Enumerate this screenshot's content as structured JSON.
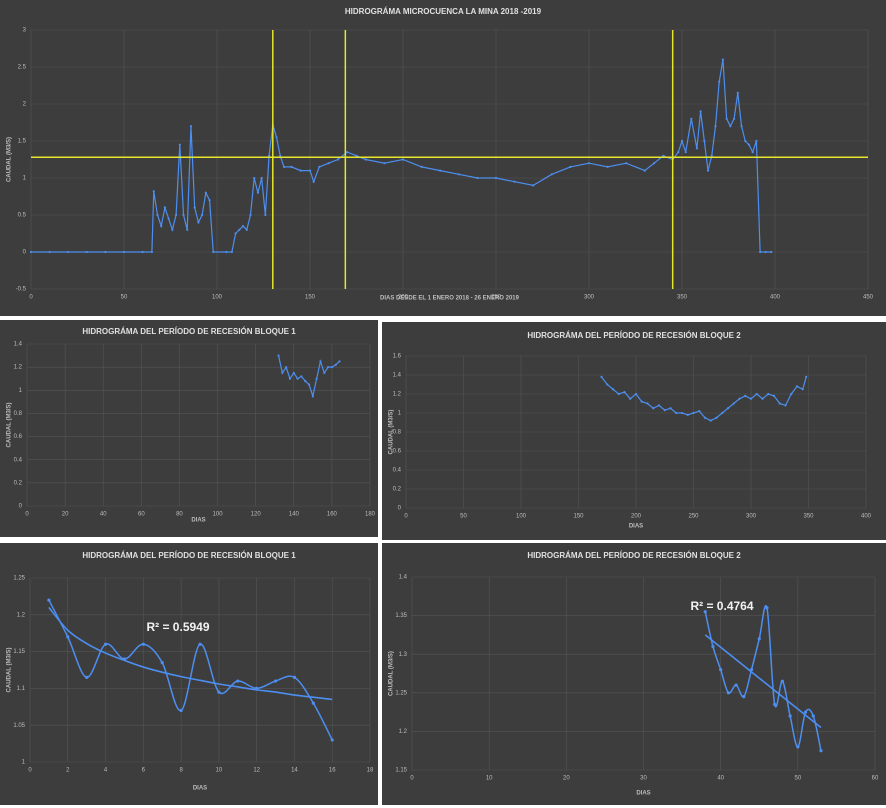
{
  "chart_data": [
    {
      "type": "line",
      "title": "HIDROGRÁMA MICROCUENCA LA MINA 2018 -2019",
      "x_label": "DIAS DESDE EL 1 ENERO 2018 - 26 ENERO 2019",
      "y_label": "CAUDAL (M3/S)",
      "xlim": [
        0,
        450
      ],
      "xticks": [
        0,
        50,
        100,
        150,
        200,
        250,
        300,
        350,
        400,
        450
      ],
      "ylim": [
        -0.5,
        3
      ],
      "yticks": [
        -0.5,
        0,
        0.5,
        1,
        1.5,
        2,
        2.5,
        3
      ],
      "grid": true,
      "color": "#4d8ef0",
      "smooth": false,
      "vlines": [
        130,
        169,
        345
      ],
      "hline": 1.28,
      "ref_color": "#e6e62a",
      "x": [
        0,
        10,
        20,
        30,
        40,
        50,
        60,
        65,
        66,
        68,
        70,
        72,
        74,
        76,
        78,
        80,
        82,
        84,
        86,
        88,
        90,
        92,
        94,
        96,
        98,
        105,
        108,
        110,
        112,
        114,
        116,
        118,
        120,
        122,
        124,
        126,
        128,
        130,
        132,
        134,
        136,
        140,
        145,
        150,
        152,
        155,
        160,
        165,
        170,
        175,
        180,
        190,
        200,
        210,
        220,
        230,
        240,
        250,
        260,
        270,
        280,
        290,
        300,
        310,
        320,
        330,
        335,
        340,
        345,
        348,
        350,
        352,
        355,
        358,
        360,
        362,
        364,
        366,
        368,
        370,
        372,
        374,
        376,
        378,
        380,
        382,
        384,
        386,
        388,
        390,
        392,
        395,
        398
      ],
      "values": [
        0,
        0,
        0,
        0,
        0,
        0,
        0,
        0,
        0.82,
        0.5,
        0.35,
        0.6,
        0.45,
        0.3,
        0.5,
        1.45,
        0.5,
        0.3,
        1.7,
        0.6,
        0.4,
        0.5,
        0.8,
        0.7,
        0,
        0,
        0,
        0.25,
        0.3,
        0.35,
        0.3,
        0.5,
        1.0,
        0.8,
        1.0,
        0.5,
        1.3,
        1.72,
        1.55,
        1.3,
        1.15,
        1.15,
        1.1,
        1.1,
        0.95,
        1.15,
        1.2,
        1.25,
        1.35,
        1.3,
        1.25,
        1.2,
        1.25,
        1.15,
        1.1,
        1.05,
        1.0,
        1.0,
        0.95,
        0.9,
        1.05,
        1.15,
        1.2,
        1.15,
        1.2,
        1.1,
        1.2,
        1.3,
        1.25,
        1.35,
        1.5,
        1.35,
        1.8,
        1.4,
        1.9,
        1.5,
        1.1,
        1.3,
        1.7,
        2.3,
        2.6,
        1.8,
        1.7,
        1.8,
        2.15,
        1.7,
        1.5,
        1.45,
        1.35,
        1.5,
        0,
        0,
        0
      ]
    },
    {
      "type": "line",
      "title": "HIDROGRÁMA DEL PERÍODO DE RECESIÓN BLOQUE 1",
      "x_label": "DIAS",
      "y_label": "CAUDAL (M3/S)",
      "xlim": [
        0,
        180
      ],
      "xticks": [
        0,
        20,
        40,
        60,
        80,
        100,
        120,
        140,
        160,
        180
      ],
      "ylim": [
        0,
        1.4
      ],
      "yticks": [
        0,
        0.2,
        0.4,
        0.6,
        0.8,
        1,
        1.2,
        1.4
      ],
      "grid": true,
      "color": "#4d8ef0",
      "smooth": false,
      "x": [
        132,
        134,
        136,
        138,
        140,
        142,
        144,
        146,
        148,
        150,
        152,
        154,
        156,
        158,
        160,
        162,
        164
      ],
      "values": [
        1.3,
        1.15,
        1.2,
        1.1,
        1.15,
        1.1,
        1.12,
        1.08,
        1.05,
        0.95,
        1.1,
        1.25,
        1.15,
        1.2,
        1.2,
        1.22,
        1.25
      ]
    },
    {
      "type": "line",
      "title": "HIDROGRÁMA DEL PERÍODO DE RECESIÓN BLOQUE  2",
      "x_label": "DIAS",
      "y_label": "CAUDAL (M3/S)",
      "xlim": [
        0,
        400
      ],
      "xticks": [
        0,
        50,
        100,
        150,
        200,
        250,
        300,
        350,
        400
      ],
      "ylim": [
        0,
        1.6
      ],
      "yticks": [
        0,
        0.2,
        0.4,
        0.6,
        0.8,
        1,
        1.2,
        1.4,
        1.6
      ],
      "grid": true,
      "color": "#4d8ef0",
      "smooth": false,
      "x": [
        170,
        175,
        180,
        185,
        190,
        195,
        200,
        205,
        210,
        215,
        220,
        225,
        230,
        235,
        240,
        245,
        250,
        255,
        260,
        265,
        270,
        275,
        280,
        285,
        290,
        295,
        300,
        305,
        310,
        315,
        320,
        325,
        330,
        335,
        340,
        345,
        348
      ],
      "values": [
        1.38,
        1.3,
        1.25,
        1.2,
        1.22,
        1.15,
        1.2,
        1.12,
        1.1,
        1.05,
        1.08,
        1.03,
        1.05,
        1.0,
        1.0,
        0.98,
        1.0,
        1.02,
        0.95,
        0.92,
        0.95,
        1.0,
        1.05,
        1.1,
        1.15,
        1.18,
        1.15,
        1.2,
        1.15,
        1.2,
        1.18,
        1.1,
        1.08,
        1.2,
        1.28,
        1.25,
        1.38
      ]
    },
    {
      "type": "line",
      "title": "HIDROGRÁMA DEL PERÍODO DE RECESIÓN BLOQUE  1",
      "x_label": "DIAS",
      "y_label": "CAUDAL (M3/S)",
      "annotation": "R² = 0.5949",
      "xlim": [
        0,
        18
      ],
      "xticks": [
        0,
        2,
        4,
        6,
        8,
        10,
        12,
        14,
        16,
        18
      ],
      "ylim": [
        1,
        1.25
      ],
      "yticks": [
        1,
        1.05,
        1.1,
        1.15,
        1.2,
        1.25
      ],
      "grid": true,
      "color": "#4d8ef0",
      "smooth": true,
      "x": [
        1,
        2,
        3,
        4,
        5,
        6,
        7,
        8,
        9,
        10,
        11,
        12,
        13,
        14,
        15,
        16
      ],
      "values": [
        1.22,
        1.17,
        1.115,
        1.16,
        1.14,
        1.16,
        1.135,
        1.07,
        1.16,
        1.095,
        1.11,
        1.1,
        1.11,
        1.115,
        1.08,
        1.03
      ],
      "trendline": [
        1.21,
        1.179,
        1.161,
        1.148,
        1.138,
        1.129,
        1.122,
        1.116,
        1.111,
        1.106,
        1.102,
        1.098,
        1.095,
        1.091,
        1.088,
        1.085
      ]
    },
    {
      "type": "line",
      "title": "HIDROGRÁMA DEL PERÍODO DE RECESIÓN BLOQUE 2",
      "x_label": "DIAS",
      "y_label": "CAUDAL (M3/S)",
      "annotation": "R² = 0.4764",
      "xlim": [
        0,
        60
      ],
      "xticks": [
        0,
        10,
        20,
        30,
        40,
        50,
        60
      ],
      "ylim": [
        1.15,
        1.4
      ],
      "yticks": [
        1.15,
        1.2,
        1.25,
        1.3,
        1.35,
        1.4
      ],
      "grid": true,
      "color": "#4d8ef0",
      "smooth": true,
      "x": [
        38,
        39,
        40,
        41,
        42,
        43,
        44,
        45,
        46,
        47,
        48,
        49,
        50,
        51,
        52,
        53
      ],
      "values": [
        1.355,
        1.31,
        1.28,
        1.25,
        1.26,
        1.245,
        1.28,
        1.32,
        1.36,
        1.235,
        1.265,
        1.22,
        1.18,
        1.225,
        1.22,
        1.175
      ],
      "trendline": [
        1.325,
        1.317,
        1.309,
        1.301,
        1.293,
        1.285,
        1.277,
        1.269,
        1.261,
        1.253,
        1.245,
        1.237,
        1.229,
        1.221,
        1.213,
        1.205
      ]
    }
  ]
}
